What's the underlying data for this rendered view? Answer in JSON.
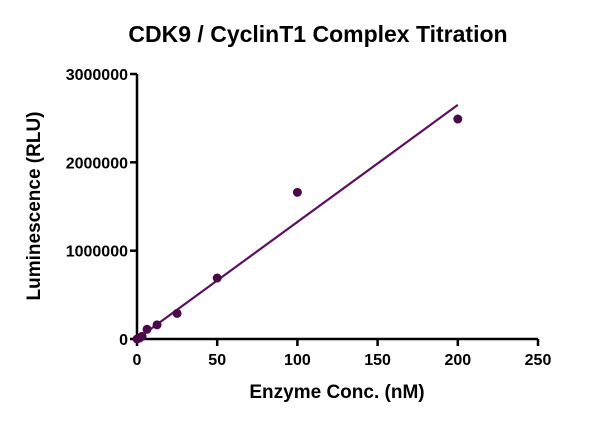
{
  "chart_data": {
    "type": "scatter",
    "title": "CDK9 / CyclinT1 Complex Titration",
    "xlabel": "Enzyme Conc. (nM)",
    "ylabel": "Luminescence (RLU)",
    "xlim": [
      0,
      250
    ],
    "ylim": [
      0,
      3000000
    ],
    "x_ticks": [
      0,
      50,
      100,
      150,
      200,
      250
    ],
    "y_ticks": [
      0,
      1000000,
      2000000,
      3000000
    ],
    "x_tick_labels": [
      "0",
      "50",
      "100",
      "150",
      "200",
      "250"
    ],
    "y_tick_labels": [
      "0",
      "1000000",
      "2000000",
      "3000000"
    ],
    "grid": false,
    "legend": "none",
    "series": [
      {
        "name": "CDK9 / CyclinT1",
        "x": [
          0,
          1.56,
          3.13,
          6.25,
          12.5,
          25,
          50,
          100,
          200
        ],
        "y": [
          0,
          10000,
          30000,
          110000,
          160000,
          290000,
          690000,
          1660000,
          2490000
        ]
      }
    ],
    "fit_line": {
      "x": [
        0,
        200
      ],
      "y": [
        0,
        2650000
      ]
    },
    "colors": {
      "marker": "#4a0a4a",
      "line": "#5c1060"
    }
  }
}
